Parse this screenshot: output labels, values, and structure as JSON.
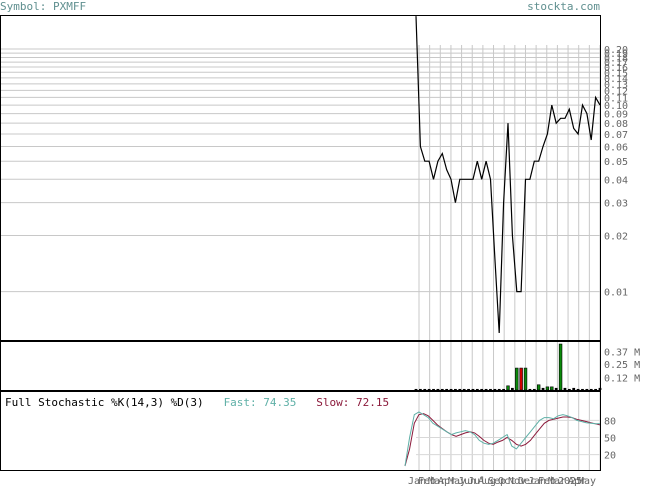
{
  "header": {
    "symbol": "Symbol: PXMFF",
    "site": "stockta.com"
  },
  "stochastic": {
    "title": "Full Stochastic %K(14,3) %D(3)",
    "fast_label": "Fast: 74.35",
    "slow_label": "Slow: 72.15",
    "fast_color": "#5fb0a7",
    "slow_color": "#8b1a3b"
  },
  "chart_data": {
    "type": "line",
    "scale": "log",
    "price_ticks": [
      0.2,
      0.19,
      0.18,
      0.17,
      0.16,
      0.15,
      0.14,
      0.13,
      0.12,
      0.11,
      0.1,
      0.09,
      0.08,
      0.07,
      0.06,
      0.05,
      0.04,
      0.03,
      0.02,
      0.01
    ],
    "price_tick_labels": [
      "0.20",
      "0.19",
      "0.18",
      "0.17",
      "0.16",
      "0.15",
      "0.14",
      "0.13",
      "0.12",
      "0.11",
      "0.10",
      "0.09",
      "0.08",
      "0.07",
      "0.06",
      "0.05",
      "0.04",
      "0.03",
      "0.02",
      "0.01"
    ],
    "price_series": [
      0.3,
      0.06,
      0.05,
      0.05,
      0.04,
      0.05,
      0.055,
      0.045,
      0.04,
      0.03,
      0.04,
      0.04,
      0.04,
      0.04,
      0.05,
      0.04,
      0.05,
      0.04,
      0.015,
      0.006,
      0.03,
      0.08,
      0.02,
      0.01,
      0.01,
      0.04,
      0.04,
      0.05,
      0.05,
      0.06,
      0.07,
      0.1,
      0.08,
      0.085,
      0.085,
      0.095,
      0.075,
      0.07,
      0.1,
      0.09,
      0.065,
      0.11,
      0.1
    ],
    "volume_tick_labels": [
      "0.37 M",
      "0.25 M",
      "0.12 M"
    ],
    "volume_ticks": [
      0.37,
      0.25,
      0.12
    ],
    "volume_ylim": [
      0,
      0.45
    ],
    "volume_bars": [
      {
        "v": 0.01,
        "c": "black"
      },
      {
        "v": 0.01,
        "c": "black"
      },
      {
        "v": 0.01,
        "c": "black"
      },
      {
        "v": 0.01,
        "c": "black"
      },
      {
        "v": 0.01,
        "c": "black"
      },
      {
        "v": 0.01,
        "c": "black"
      },
      {
        "v": 0.01,
        "c": "black"
      },
      {
        "v": 0.01,
        "c": "black"
      },
      {
        "v": 0.01,
        "c": "black"
      },
      {
        "v": 0.01,
        "c": "black"
      },
      {
        "v": 0.01,
        "c": "black"
      },
      {
        "v": 0.01,
        "c": "black"
      },
      {
        "v": 0.01,
        "c": "black"
      },
      {
        "v": 0.01,
        "c": "black"
      },
      {
        "v": 0.01,
        "c": "black"
      },
      {
        "v": 0.01,
        "c": "black"
      },
      {
        "v": 0.01,
        "c": "black"
      },
      {
        "v": 0.01,
        "c": "black"
      },
      {
        "v": 0.01,
        "c": "black"
      },
      {
        "v": 0.01,
        "c": "black"
      },
      {
        "v": 0.01,
        "c": "black"
      },
      {
        "v": 0.04,
        "c": "green"
      },
      {
        "v": 0.02,
        "c": "black"
      },
      {
        "v": 0.21,
        "c": "green"
      },
      {
        "v": 0.21,
        "c": "red"
      },
      {
        "v": 0.21,
        "c": "green"
      },
      {
        "v": 0.01,
        "c": "black"
      },
      {
        "v": 0.01,
        "c": "black"
      },
      {
        "v": 0.05,
        "c": "green"
      },
      {
        "v": 0.02,
        "c": "black"
      },
      {
        "v": 0.03,
        "c": "green"
      },
      {
        "v": 0.03,
        "c": "green"
      },
      {
        "v": 0.02,
        "c": "black"
      },
      {
        "v": 0.44,
        "c": "green"
      },
      {
        "v": 0.02,
        "c": "black"
      },
      {
        "v": 0.01,
        "c": "black"
      },
      {
        "v": 0.02,
        "c": "black"
      },
      {
        "v": 0.01,
        "c": "black"
      },
      {
        "v": 0.01,
        "c": "black"
      },
      {
        "v": 0.01,
        "c": "black"
      },
      {
        "v": 0.01,
        "c": "black"
      },
      {
        "v": 0.01,
        "c": "black"
      },
      {
        "v": 0.02,
        "c": "black"
      }
    ],
    "stoch_tick_labels": [
      "80",
      "50",
      "20"
    ],
    "stoch_ticks": [
      80,
      50,
      20
    ],
    "stoch_k": [
      0,
      50,
      90,
      95,
      90,
      85,
      75,
      70,
      65,
      60,
      55,
      58,
      60,
      62,
      60,
      55,
      45,
      40,
      38,
      40,
      45,
      50,
      55,
      35,
      30,
      40,
      50,
      60,
      70,
      80,
      85,
      85,
      83,
      88,
      90,
      88,
      85,
      80,
      78,
      76,
      75,
      74,
      74.35
    ],
    "stoch_d": [
      0,
      30,
      75,
      90,
      92,
      88,
      80,
      72,
      66,
      60,
      55,
      52,
      55,
      58,
      60,
      58,
      52,
      45,
      40,
      38,
      42,
      45,
      50,
      45,
      38,
      35,
      38,
      45,
      55,
      65,
      75,
      80,
      82,
      84,
      86,
      86,
      85,
      82,
      80,
      78,
      76,
      74,
      72.15
    ],
    "x_labels": [
      "Jan",
      "Feb",
      "Mar",
      "Apr",
      "May",
      "Jun",
      "Jul",
      "Aug",
      "Sep",
      "Oct",
      "Nov",
      "Dec",
      "Jan",
      "Feb",
      "Mar",
      "2025",
      "Apr",
      "May"
    ]
  }
}
